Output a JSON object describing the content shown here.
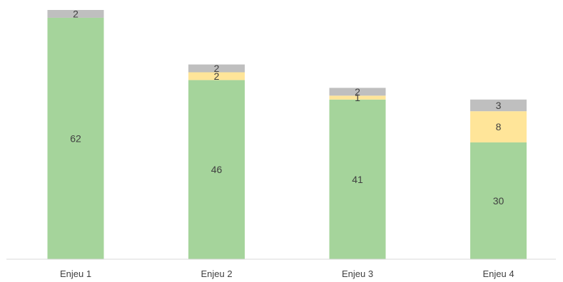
{
  "chart_data": {
    "type": "bar",
    "stacked": true,
    "title": "",
    "xlabel": "",
    "ylabel": "",
    "categories": [
      "Enjeu 1",
      "Enjeu 2",
      "Enjeu 3",
      "Enjeu 4"
    ],
    "series": [
      {
        "values": [
          62,
          46,
          41,
          30
        ],
        "color": "#a5d49b"
      },
      {
        "values": [
          0,
          2,
          1,
          8
        ],
        "color": "#ffe599"
      },
      {
        "values": [
          2,
          2,
          2,
          3
        ],
        "color": "#bfbfbf"
      }
    ],
    "ylim": [
      0,
      64
    ],
    "grid": false,
    "legend": "none",
    "data_labels": true
  }
}
